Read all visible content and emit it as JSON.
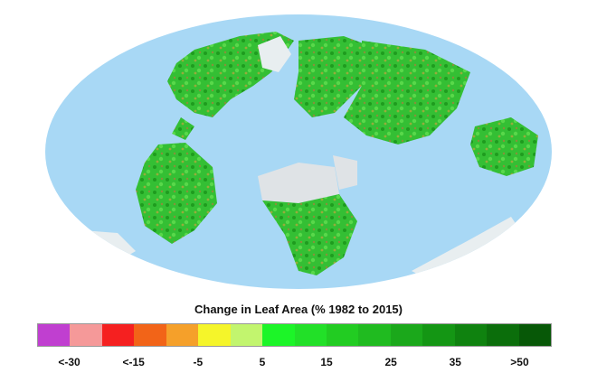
{
  "legend": {
    "title": "Change in Leaf Area (% 1982 to 2015)",
    "colors": [
      "#c03fd0",
      "#f59999",
      "#f52020",
      "#f26418",
      "#f5a02a",
      "#f5f52a",
      "#c2f56e",
      "#1cf528",
      "#22e028",
      "#22cc22",
      "#20bb20",
      "#1ba81b",
      "#149614",
      "#0f820f",
      "#0b6e0b",
      "#075807"
    ],
    "ticks": [
      {
        "label": "<-30",
        "index": 0
      },
      {
        "label": "<-15",
        "index": 2
      },
      {
        "label": "-5",
        "index": 4
      },
      {
        "label": "5",
        "index": 6
      },
      {
        "label": "15",
        "index": 8
      },
      {
        "label": "25",
        "index": 10
      },
      {
        "label": "35",
        "index": 12
      },
      {
        "label": ">50",
        "index": 14
      }
    ]
  },
  "map": {
    "ocean_color": "#a8d8f5",
    "land_green": "#2fb82f",
    "ice_color": "#e8eef0"
  }
}
